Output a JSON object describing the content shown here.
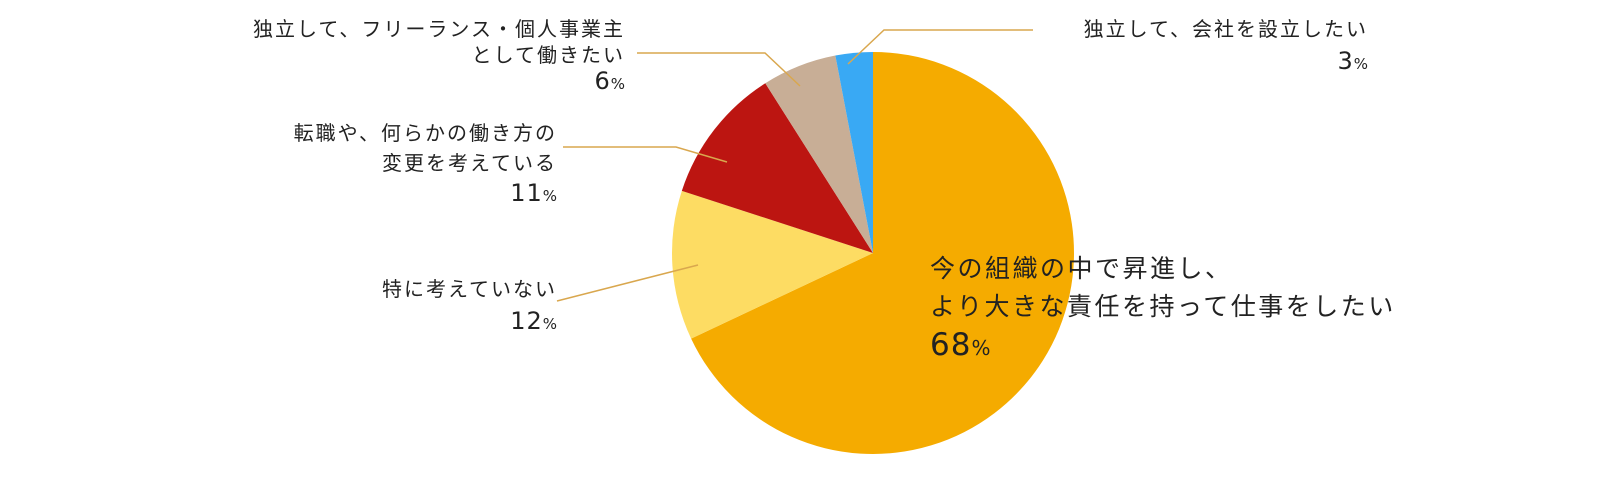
{
  "chart_data": {
    "type": "pie",
    "title": "",
    "start_angle_deg": 0,
    "direction": "clockwise",
    "percent_unit": "%",
    "slices": [
      {
        "label_lines": [
          "今の組織の中で昇進し、",
          "より大きな責任を持って仕事をしたい"
        ],
        "value": 68,
        "color": "#F5AB00"
      },
      {
        "label_lines": [
          "特に考えていない"
        ],
        "value": 12,
        "color": "#FDDC63"
      },
      {
        "label_lines": [
          "転職や、何らかの働き方の",
          "変更を考えている"
        ],
        "value": 11,
        "color": "#BC1511"
      },
      {
        "label_lines": [
          "独立して、フリーランス・個人事業主",
          "として働きたい"
        ],
        "value": 6,
        "color": "#C8AE96"
      },
      {
        "label_lines": [
          "独立して、会社を設立したい"
        ],
        "value": 3,
        "color": "#39A9F4"
      }
    ],
    "leader_line_color": "#D9A74E"
  }
}
